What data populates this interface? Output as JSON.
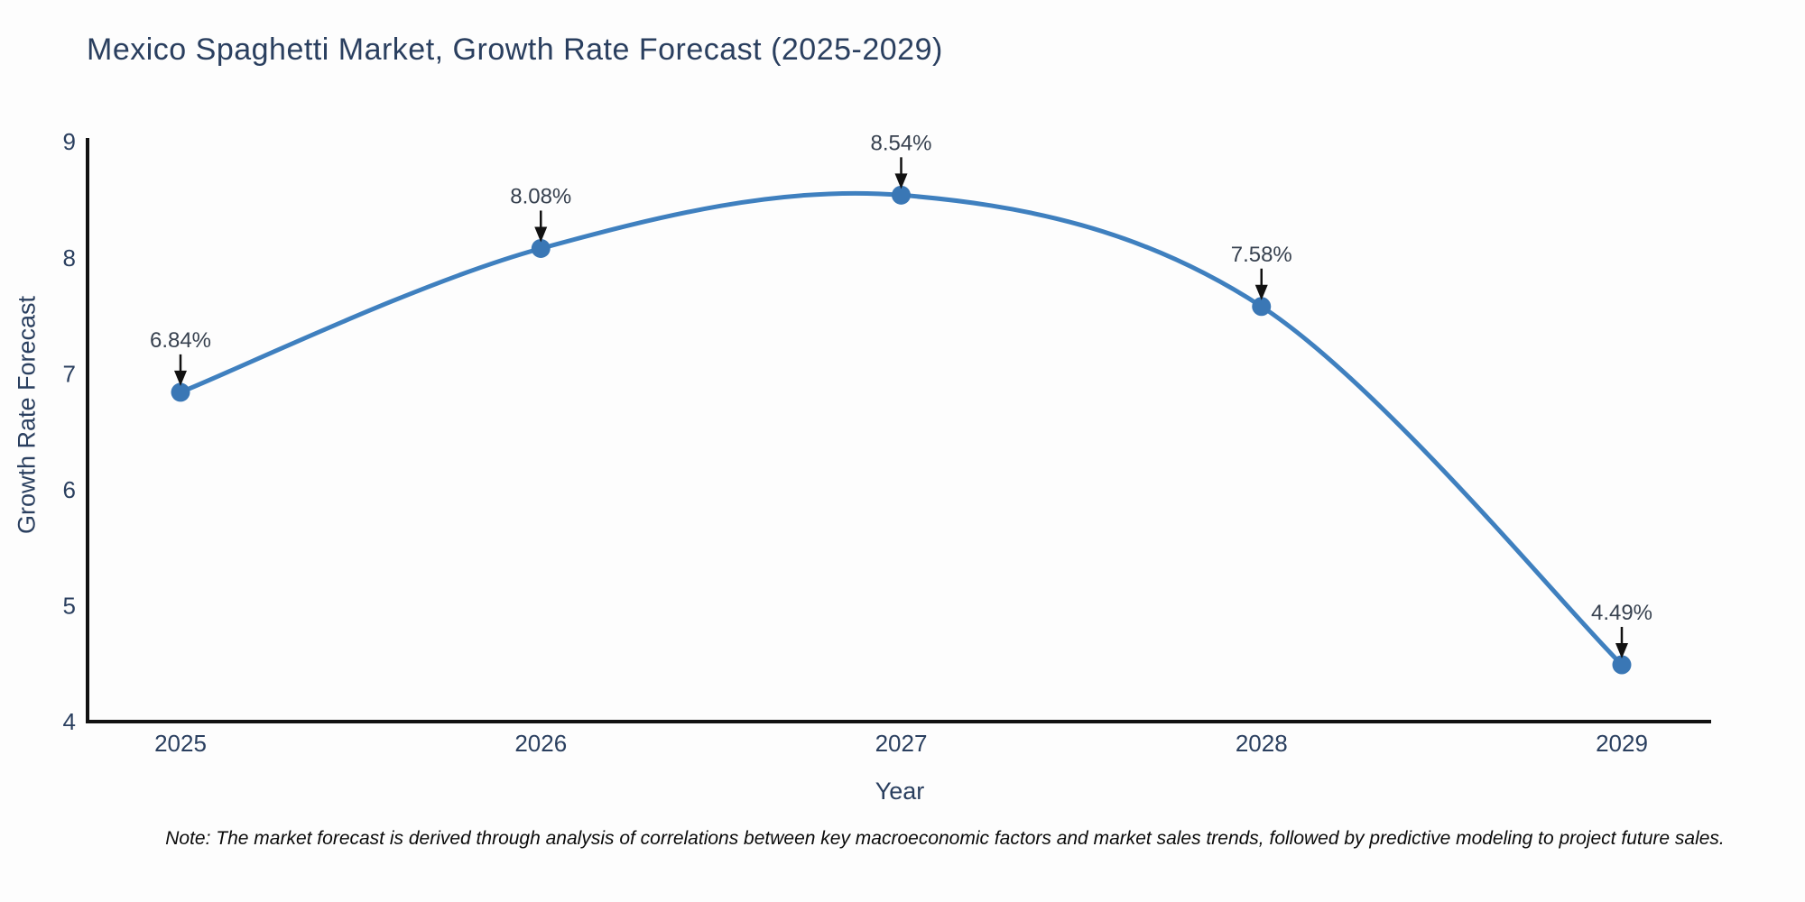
{
  "figure": {
    "note": "Note: The market forecast is derived through analysis of correlations between key macroeconomic factors and market sales trends, followed by predictive modeling to project future sales."
  },
  "chart_data": {
    "type": "line",
    "title": "Mexico Spaghetti Market, Growth Rate Forecast (2025-2029)",
    "xlabel": "Year",
    "ylabel": "Growth Rate Forecast",
    "categories": [
      "2025",
      "2026",
      "2027",
      "2028",
      "2029"
    ],
    "series": [
      {
        "name": "Growth Rate Forecast",
        "values": [
          6.84,
          8.08,
          8.54,
          7.58,
          4.49
        ],
        "point_labels": [
          "6.84%",
          "8.08%",
          "8.54%",
          "7.58%",
          "4.49%"
        ]
      }
    ],
    "ylim": [
      4,
      9
    ],
    "y_ticks": [
      4,
      5,
      6,
      7,
      8,
      9
    ],
    "line_shape": "spline",
    "grid": false,
    "legend_position": "none",
    "colors": {
      "line": "#3f80bf",
      "marker": "#3a77b5",
      "axis": "#111111",
      "tick_text": "#2a3f5f",
      "annotation_text": "#37414f",
      "arrow": "#111111",
      "background": "#fdfdfd"
    }
  }
}
